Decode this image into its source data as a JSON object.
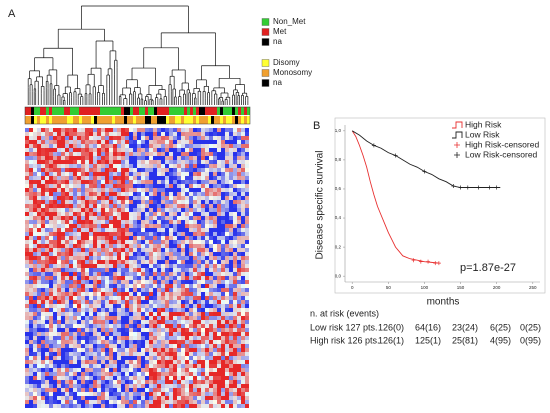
{
  "panel_a": {
    "label": "A",
    "legend_groups": [
      {
        "items": [
          {
            "name": "Non_Met",
            "color": "#33cc33"
          },
          {
            "name": "Met",
            "color": "#e02020"
          },
          {
            "name": "na",
            "color": "#000000"
          }
        ]
      },
      {
        "items": [
          {
            "name": "Disomy",
            "color": "#ffff33"
          },
          {
            "name": "Monosomy",
            "color": "#f0a030"
          },
          {
            "name": "na",
            "color": "#000000"
          }
        ]
      }
    ]
  },
  "chart_data": {
    "type": "line",
    "label": "B",
    "ylabel": "Disease specific survival",
    "xlabel": "months",
    "annotation": "p=1.87e-27",
    "xlim": [
      -10,
      260
    ],
    "ylim": [
      -0.04,
      1.04
    ],
    "xticks": [
      0,
      50,
      100,
      150,
      200,
      250
    ],
    "yticks": [
      {
        "value": 0,
        "label": "0,0"
      },
      {
        "value": 0.2,
        "label": "0,2"
      },
      {
        "value": 0.4,
        "label": "0,4"
      },
      {
        "value": 0.6,
        "label": "0,6"
      },
      {
        "value": 0.8,
        "label": "0,8"
      },
      {
        "value": 1,
        "label": "1,0"
      }
    ],
    "series": [
      {
        "name": "High Risk",
        "color": "#e83030",
        "marker": "line",
        "x": [
          0,
          5,
          10,
          15,
          20,
          25,
          30,
          35,
          40,
          45,
          50,
          55,
          60,
          65,
          70,
          75,
          80,
          90,
          100,
          110,
          120
        ],
        "values": [
          1,
          0.96,
          0.9,
          0.83,
          0.75,
          0.65,
          0.56,
          0.48,
          0.42,
          0.36,
          0.3,
          0.25,
          0.2,
          0.17,
          0.14,
          0.13,
          0.12,
          0.11,
          0.1,
          0.095,
          0.09
        ]
      },
      {
        "name": "Low Risk",
        "color": "#222222",
        "marker": "line",
        "x": [
          0,
          10,
          20,
          30,
          40,
          50,
          60,
          70,
          80,
          90,
          100,
          110,
          120,
          130,
          140,
          150,
          175,
          205
        ],
        "values": [
          1,
          0.97,
          0.93,
          0.9,
          0.88,
          0.85,
          0.83,
          0.8,
          0.77,
          0.75,
          0.72,
          0.7,
          0.67,
          0.65,
          0.62,
          0.61,
          0.61,
          0.61
        ]
      },
      {
        "name": "High Risk-censored",
        "color": "#e83030",
        "marker": "plus",
        "x": [
          85,
          95,
          105,
          115,
          120
        ],
        "values": [
          0.11,
          0.1,
          0.1,
          0.09,
          0.09
        ]
      },
      {
        "name": "Low Risk-censored",
        "color": "#222222",
        "marker": "plus",
        "x": [
          30,
          60,
          100,
          140,
          150,
          160,
          175,
          190,
          200
        ],
        "values": [
          0.9,
          0.83,
          0.72,
          0.62,
          0.61,
          0.61,
          0.61,
          0.61,
          0.61
        ]
      }
    ]
  },
  "risk_table": {
    "title": "n. at risk (events)",
    "rows": [
      {
        "label": "Low risk 127 pts.",
        "cells": [
          "126(0)",
          "64(16)",
          "23(24)",
          "6(25)",
          "0(25)"
        ]
      },
      {
        "label": "High risk 126 pts.",
        "cells": [
          "126(1)",
          "125(1)",
          "25(81)",
          "4(95)",
          "0(95)"
        ]
      }
    ]
  }
}
